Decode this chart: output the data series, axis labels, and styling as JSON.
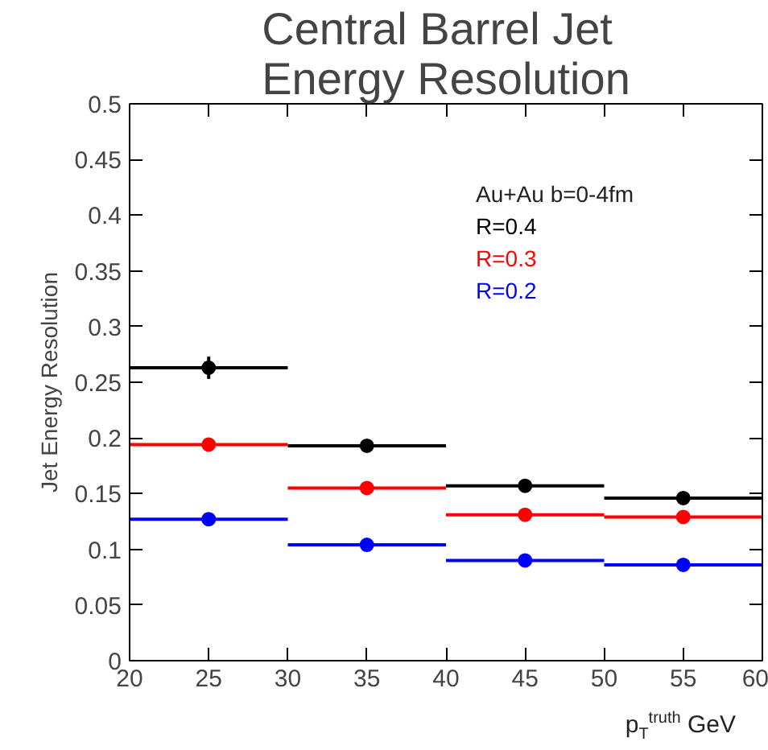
{
  "chart_data": {
    "type": "scatter",
    "title": "Central Barrel Jet Energy Resolution",
    "xlabel": "p$_{T}$$^{truth}$ GeV",
    "ylabel": "Jet Energy Resolution",
    "legend_title": "Au+Au b=0-4fm",
    "x": [
      25,
      35,
      45,
      55
    ],
    "series": [
      {
        "name": "R=0.4",
        "color": "#000000",
        "values": [
          0.263,
          0.193,
          0.157,
          0.146
        ],
        "xerrors": [
          5,
          5,
          5,
          5
        ],
        "errors": [
          0.01,
          null,
          null,
          null
        ]
      },
      {
        "name": "R=0.3",
        "color": "#ff0000",
        "values": [
          0.194,
          0.155,
          0.131,
          0.129
        ],
        "xerrors": [
          5,
          5,
          5,
          5
        ]
      },
      {
        "name": "R=0.2",
        "color": "#0000ff",
        "values": [
          0.127,
          0.104,
          0.09,
          0.086
        ],
        "xerrors": [
          5,
          5,
          5,
          5
        ]
      }
    ],
    "xlim": [
      20,
      60
    ],
    "xticks": [
      20,
      25,
      30,
      35,
      40,
      45,
      50,
      55,
      60
    ],
    "ylim": [
      0,
      0.5
    ],
    "yticks": [
      0,
      0.05,
      0.1,
      0.15,
      0.2,
      0.25,
      0.3,
      0.35,
      0.4,
      0.45,
      0.5
    ],
    "marker": "circle",
    "legend": "top right",
    "grid": false
  }
}
